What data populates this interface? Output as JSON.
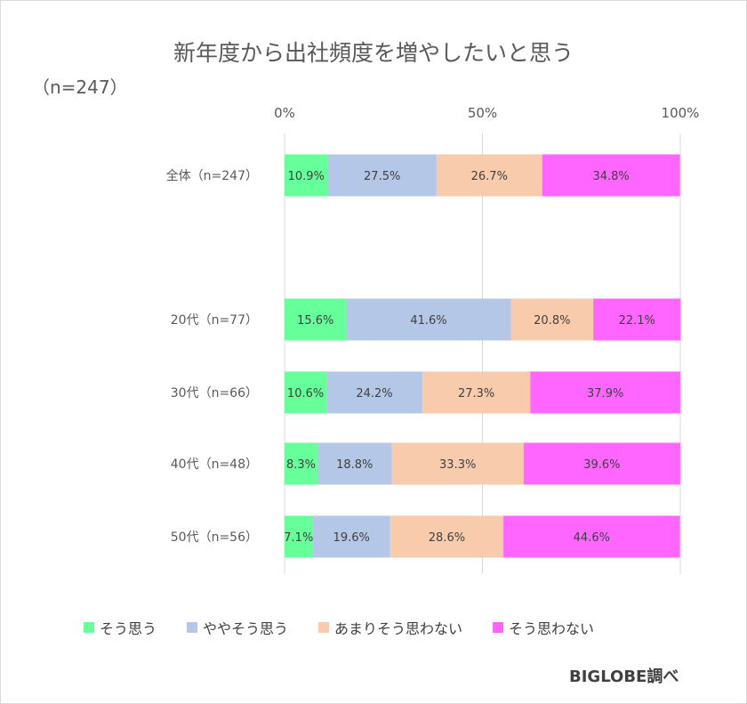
{
  "chart_data": {
    "type": "bar",
    "orientation": "horizontal",
    "stacked": "percent",
    "title": "新年度から出社頻度を増やしたいと思う",
    "subtitle": "（n=247）",
    "categories": [
      "全体（n=247）",
      "20代（n=77）",
      "30代（n=66）",
      "40代（n=48）",
      "50代（n=56）"
    ],
    "series": [
      {
        "name": "そう思う",
        "color": "#66ff99",
        "values": [
          10.9,
          15.6,
          10.6,
          8.3,
          7.1
        ]
      },
      {
        "name": "ややそう思う",
        "color": "#b4c7e7",
        "values": [
          27.5,
          41.6,
          24.2,
          18.8,
          19.6
        ]
      },
      {
        "name": "あまりそう思わない",
        "color": "#f8cbad",
        "values": [
          26.7,
          20.8,
          27.3,
          33.3,
          28.6
        ]
      },
      {
        "name": "そう思わない",
        "color": "#ff66ff",
        "values": [
          34.8,
          22.1,
          37.9,
          39.6,
          44.6
        ]
      }
    ],
    "x_ticks": [
      "0%",
      "50%",
      "100%"
    ],
    "xlim": [
      0,
      100
    ],
    "grid": true,
    "legend_position": "bottom",
    "source": "BIGLOBE調べ"
  }
}
